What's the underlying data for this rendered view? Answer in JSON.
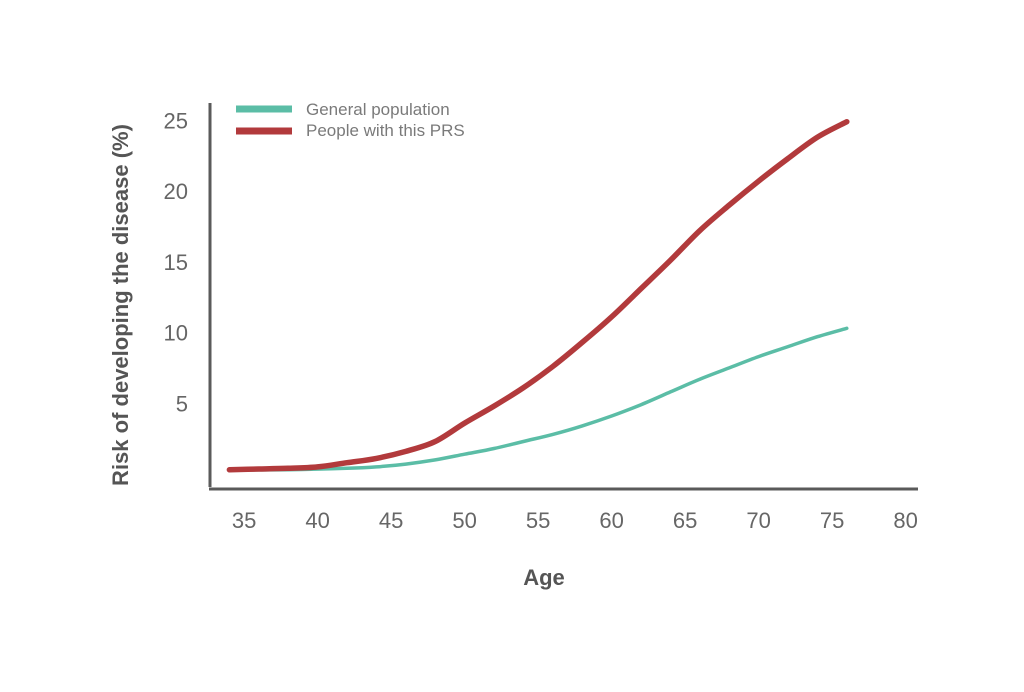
{
  "chart_data": {
    "type": "line",
    "xlabel": "Age",
    "ylabel": "Risk of developing the disease (%)",
    "xlim": [
      32,
      80
    ],
    "ylim": [
      0,
      26
    ],
    "x_ticks": [
      35,
      40,
      45,
      50,
      55,
      60,
      65,
      70,
      75,
      80
    ],
    "y_ticks": [
      5,
      10,
      15,
      20,
      25
    ],
    "grid": false,
    "legend_position": "top-left",
    "series": [
      {
        "name": "General population",
        "color": "#5bbda6",
        "x": [
          34,
          38,
          42,
          44,
          46,
          48,
          50,
          52,
          54,
          56,
          58,
          60,
          62,
          64,
          66,
          68,
          70,
          72,
          74,
          76
        ],
        "y": [
          0.3,
          0.3,
          0.4,
          0.5,
          0.7,
          1.0,
          1.4,
          1.8,
          2.3,
          2.8,
          3.4,
          4.1,
          4.9,
          5.8,
          6.7,
          7.5,
          8.3,
          9.0,
          9.7,
          10.3
        ]
      },
      {
        "name": "People with this PRS",
        "color": "#b23a3c",
        "x": [
          34,
          36,
          38,
          40,
          42,
          44,
          46,
          48,
          50,
          52,
          54,
          56,
          58,
          60,
          62,
          64,
          66,
          68,
          70,
          72,
          74,
          76
        ],
        "y": [
          0.3,
          0.35,
          0.4,
          0.5,
          0.8,
          1.1,
          1.6,
          2.3,
          3.6,
          4.8,
          6.1,
          7.6,
          9.3,
          11.1,
          13.1,
          15.1,
          17.2,
          19.0,
          20.7,
          22.3,
          23.8,
          24.9
        ]
      }
    ]
  }
}
